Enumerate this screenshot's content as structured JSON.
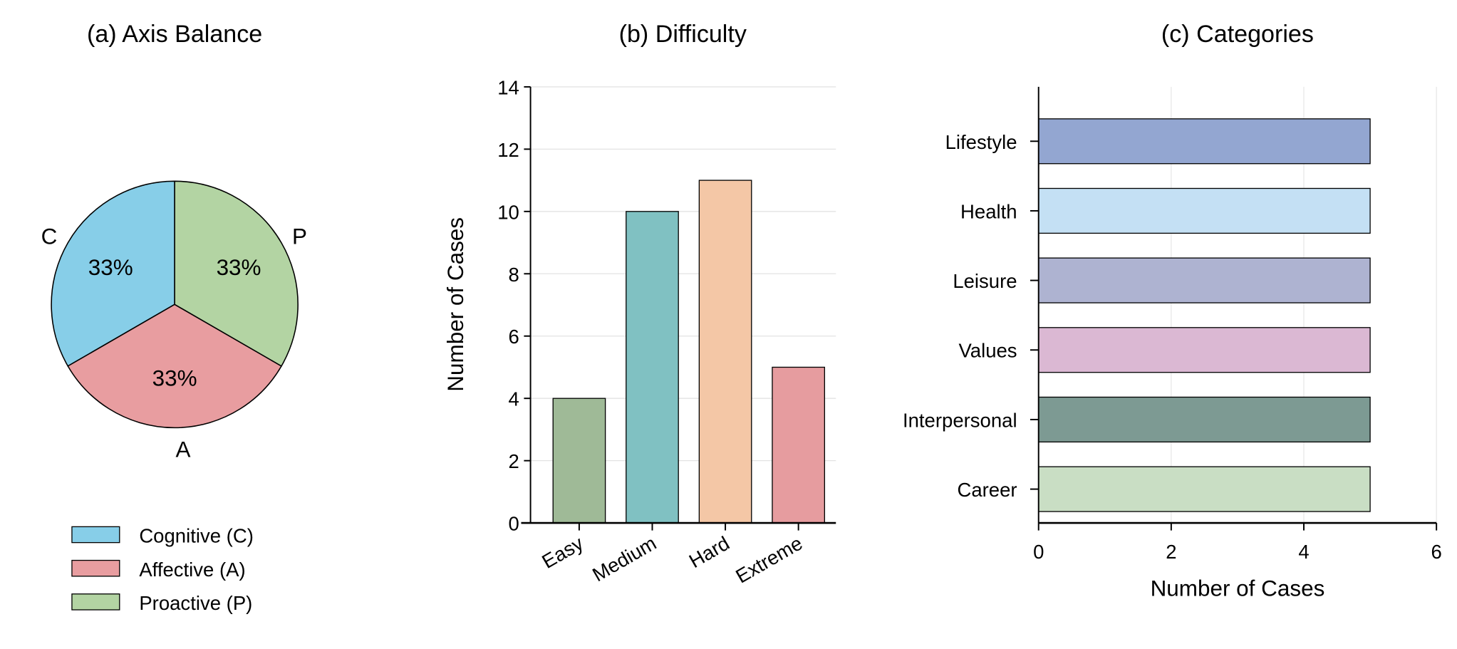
{
  "chart_data": [
    {
      "type": "pie",
      "title": "(a) Axis Balance",
      "slices": [
        {
          "label": "C",
          "legend": "Cognitive (C)",
          "value": 33.33,
          "pct_label": "33%",
          "color": "#87CEE8"
        },
        {
          "label": "A",
          "legend": "Affective (A)",
          "value": 33.33,
          "pct_label": "33%",
          "color": "#E89DA0"
        },
        {
          "label": "P",
          "legend": "Proactive (P)",
          "value": 33.33,
          "pct_label": "33%",
          "color": "#B3D4A3"
        }
      ],
      "legend_position": "bottom-left"
    },
    {
      "type": "bar",
      "title": "(b) Difficulty",
      "categories": [
        "Easy",
        "Medium",
        "Hard",
        "Extreme"
      ],
      "values": [
        4,
        10,
        11,
        5
      ],
      "colors": [
        "#9FBA97",
        "#80C1C2",
        "#F4C7A6",
        "#E69C9F"
      ],
      "xlabel": "",
      "ylabel": "Number of Cases",
      "ylim": [
        0,
        14
      ],
      "yticks": [
        0,
        2,
        4,
        6,
        8,
        10,
        12,
        14
      ],
      "grid": true
    },
    {
      "type": "bar",
      "orientation": "horizontal",
      "title": "(c) Categories",
      "categories": [
        "Lifestyle",
        "Health",
        "Leisure",
        "Values",
        "Interpersonal",
        "Career"
      ],
      "values": [
        5,
        5,
        5,
        5,
        5,
        5
      ],
      "colors": [
        "#93A6D1",
        "#C4E0F4",
        "#AEB3D1",
        "#DBB8D3",
        "#7D9A93",
        "#C9DEC4"
      ],
      "xlabel": "Number of Cases",
      "ylabel": "",
      "xlim": [
        0,
        6
      ],
      "xticks": [
        0,
        2,
        4,
        6
      ],
      "grid": true
    }
  ]
}
